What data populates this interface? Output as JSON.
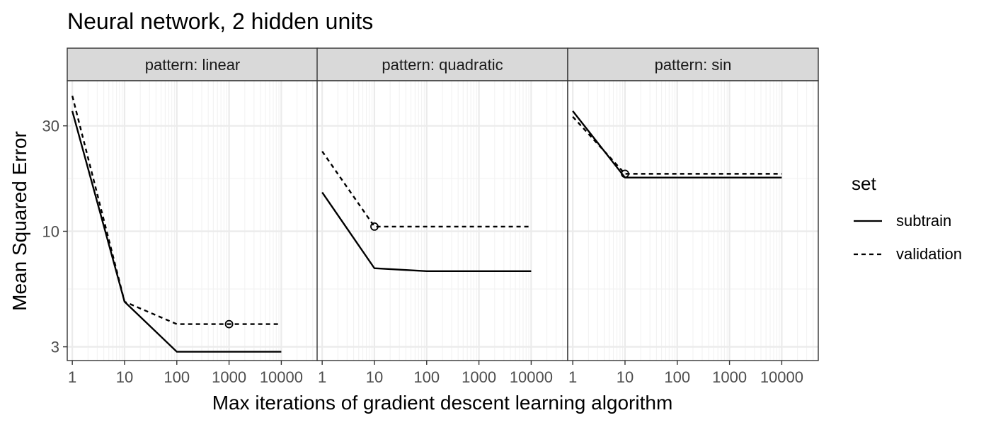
{
  "chart_data": {
    "type": "line",
    "title": "Neural network, 2 hidden units",
    "xlabel": "Max iterations of gradient descent learning algorithm",
    "ylabel": "Mean Squared Error",
    "x_scale": "log10",
    "y_scale": "log10",
    "x_ticks": [
      1,
      10,
      100,
      1000,
      10000
    ],
    "x_tick_labels": [
      "1",
      "10",
      "100",
      "1000",
      "10000"
    ],
    "xlim": [
      0.8,
      50000
    ],
    "y_ticks": [
      3,
      10,
      30
    ],
    "y_tick_labels": [
      "3",
      "10",
      "30"
    ],
    "ylim": [
      2.6,
      48
    ],
    "grid": true,
    "legend": {
      "title": "set",
      "position": "right",
      "entries": [
        {
          "name": "subtrain",
          "linetype": "solid"
        },
        {
          "name": "validation",
          "linetype": "dashed"
        }
      ]
    },
    "line_color": "#000000",
    "panels": [
      {
        "strip": "pattern: linear",
        "x": [
          1,
          10,
          100,
          1000,
          10000
        ],
        "series": [
          {
            "name": "subtrain",
            "values": [
              35,
              4.8,
              2.85,
              2.85,
              2.85
            ]
          },
          {
            "name": "validation",
            "values": [
              41,
              4.8,
              3.8,
              3.8,
              3.8
            ]
          }
        ],
        "min_marker": {
          "series": "validation",
          "x": 1000,
          "y": 3.8
        }
      },
      {
        "strip": "pattern: quadratic",
        "x": [
          1,
          10,
          100,
          1000,
          10000
        ],
        "series": [
          {
            "name": "subtrain",
            "values": [
              15,
              6.8,
              6.6,
              6.6,
              6.6
            ]
          },
          {
            "name": "validation",
            "values": [
              23,
              10.5,
              10.5,
              10.5,
              10.5
            ]
          }
        ],
        "min_marker": {
          "series": "validation",
          "x": 10,
          "y": 10.5
        }
      },
      {
        "strip": "pattern: sin",
        "x": [
          1,
          10,
          100,
          1000,
          10000
        ],
        "series": [
          {
            "name": "subtrain",
            "values": [
              35,
              17.5,
              17.5,
              17.5,
              17.5
            ]
          },
          {
            "name": "validation",
            "values": [
              33,
              18.2,
              18.2,
              18.2,
              18.2
            ]
          }
        ],
        "min_marker": {
          "series": "validation",
          "x": 10,
          "y": 18.2
        }
      }
    ]
  }
}
